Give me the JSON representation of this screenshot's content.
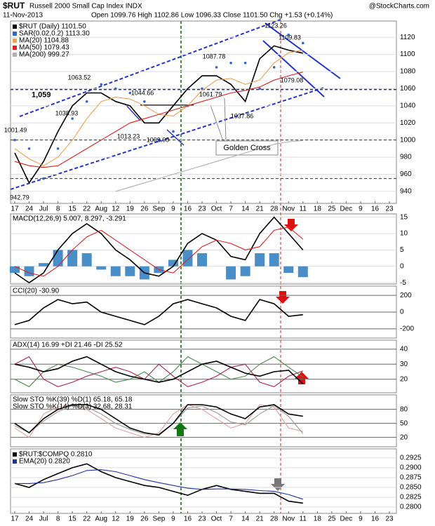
{
  "header": {
    "symbol": "$RUT",
    "name": "Russell 2000 Small Cap Index INDX",
    "date": "11-Nov-2013",
    "quote": "Open 1099.76 High 1102.86 Low 1096.33 Close 1101.50 Chg +1.53 (+0.14%)",
    "watermark": "@StockCharts.com"
  },
  "chart_data": [
    {
      "type": "line",
      "categories": [
        "17",
        "24",
        "Jul",
        "8",
        "15",
        "22",
        "Aug",
        "12",
        "19",
        "26",
        "Sep",
        "9",
        "16",
        "23",
        "Oct",
        "7",
        "14",
        "21",
        "28",
        "Nov",
        "11",
        "18",
        "25",
        "Dec",
        "9",
        "16",
        "23"
      ],
      "ylim": [
        926,
        1139
      ],
      "yticks": [
        940,
        960,
        980,
        1000,
        1020,
        1040,
        1060,
        1080,
        1100,
        1120
      ],
      "hlines": [
        {
          "value": 1059,
          "label": "1,059"
        },
        1000,
        955
      ],
      "annotations": [
        "1001.49",
        "942.79",
        "1063.52",
        "1038.93",
        "1044.66",
        "1013.23",
        "1009.00",
        "1087.78",
        "1061.79",
        "1037.86",
        "1123.26",
        "1109.83",
        "1079.08"
      ],
      "callout": "Golden Cross",
      "series": [
        {
          "name": "$RUT (Daily) 1101.50",
          "color": "#000000",
          "values": [
            985,
            950,
            975,
            1010,
            1040,
            1055,
            1055,
            1045,
            1040,
            1020,
            1020,
            1040,
            1060,
            1075,
            1075,
            1065,
            1045,
            1095,
            1110,
            1105,
            1101.5,
            null,
            null,
            null,
            null,
            null,
            null
          ]
        },
        {
          "name": "SAR(0.02,0.2) 1113.30",
          "color": "#3366cc",
          "kind": "dots",
          "values": [
            1000,
            990,
            955,
            990,
            1025,
            1045,
            1065,
            1060,
            1055,
            1045,
            1000,
            1010,
            1040,
            1060,
            1085,
            1090,
            1090,
            1060,
            1085,
            1123,
            1113.3,
            null,
            null,
            null,
            null,
            null,
            null
          ]
        },
        {
          "name": "MA(20) 1104.88",
          "color": "#f0a050",
          "values": [
            990,
            978,
            970,
            980,
            1000,
            1025,
            1045,
            1050,
            1048,
            1040,
            1030,
            1028,
            1040,
            1058,
            1070,
            1072,
            1065,
            1070,
            1090,
            1102,
            1104.88,
            null,
            null,
            null,
            null,
            null,
            null
          ]
        },
        {
          "name": "MA(50) 1079.43",
          "color": "#e02020",
          "values": [
            975,
            970,
            968,
            970,
            980,
            990,
            1000,
            1010,
            1020,
            1025,
            1030,
            1035,
            1040,
            1045,
            1050,
            1055,
            1058,
            1062,
            1070,
            1075,
            1079.43,
            null,
            null,
            null,
            null,
            null,
            null
          ]
        },
        {
          "name": "MA(200) 999.27",
          "color": "#b0b0b0",
          "values": [
            null,
            null,
            null,
            null,
            null,
            null,
            null,
            940,
            945,
            950,
            955,
            960,
            965,
            970,
            975,
            980,
            985,
            990,
            995,
            998,
            999.27,
            null,
            null,
            null,
            null,
            null,
            null
          ]
        }
      ]
    },
    {
      "type": "line",
      "title": "MACD(12,26,9) 5.007, 8.297, -3.291",
      "ylim": [
        -5.4,
        16
      ],
      "yticks": [
        -5,
        0,
        5,
        10,
        15
      ],
      "series": [
        {
          "name": "Histogram",
          "color": "#4a8ec8",
          "kind": "bar",
          "values": [
            -2,
            -3,
            1,
            5,
            5,
            4,
            -1,
            -3,
            -3,
            -4,
            -2,
            2,
            5,
            4,
            0,
            -4,
            -3,
            4,
            4,
            -2,
            -3.291,
            null,
            null,
            null,
            null,
            null,
            null
          ]
        },
        {
          "name": "MACD",
          "color": "#000000",
          "values": [
            -2,
            -5,
            -2,
            5,
            10,
            13,
            10,
            5,
            2,
            -2,
            -3,
            0,
            7,
            10,
            8,
            3,
            2,
            10,
            15,
            10,
            5.007,
            null,
            null,
            null,
            null,
            null,
            null
          ]
        },
        {
          "name": "Signal",
          "color": "#e02020",
          "values": [
            0,
            -2,
            -3,
            0,
            5,
            9,
            11,
            8,
            5,
            2,
            -1,
            -2,
            2,
            6,
            8,
            7,
            5,
            6,
            11,
            12,
            8.297,
            null,
            null,
            null,
            null,
            null,
            null
          ]
        }
      ]
    },
    {
      "type": "line",
      "title": "CCI(20) -30.90",
      "ylim": [
        -310,
        310
      ],
      "yticks": [
        -200,
        0,
        200
      ],
      "series": [
        {
          "name": "CCI",
          "color": "#000000",
          "values": [
            -150,
            -100,
            50,
            150,
            100,
            120,
            0,
            -50,
            -100,
            -150,
            -50,
            100,
            150,
            100,
            50,
            -50,
            -100,
            150,
            100,
            -50,
            -30.9,
            null,
            null,
            null,
            null,
            null,
            null
          ]
        }
      ]
    },
    {
      "type": "line",
      "title": "ADX(14) 16.99 +DI 21.46 -DI 25.52",
      "ylim": [
        11,
        46
      ],
      "yticks": [
        20,
        30,
        40
      ],
      "series": [
        {
          "name": "+DI",
          "color": "#4a8a4a",
          "values": [
            20,
            15,
            25,
            30,
            28,
            25,
            22,
            18,
            20,
            25,
            18,
            25,
            35,
            30,
            25,
            20,
            22,
            30,
            35,
            28,
            21.46,
            null,
            null,
            null,
            null,
            null,
            null
          ]
        },
        {
          "name": "-DI",
          "color": "#b02050",
          "values": [
            30,
            35,
            20,
            15,
            18,
            22,
            25,
            28,
            25,
            20,
            30,
            22,
            15,
            18,
            22,
            28,
            30,
            18,
            15,
            22,
            25.52,
            null,
            null,
            null,
            null,
            null,
            null
          ]
        },
        {
          "name": "ADX",
          "color": "#000000",
          "values": [
            30,
            28,
            25,
            27,
            32,
            35,
            30,
            25,
            22,
            20,
            18,
            20,
            25,
            30,
            32,
            28,
            24,
            22,
            25,
            26,
            16.99,
            null,
            null,
            null,
            null,
            null,
            null
          ]
        }
      ]
    },
    {
      "type": "line",
      "titles": [
        "Slow STO %K(39) %D(1) 65.18, 65.18",
        "Slow STO %K(14) %D(3) 32.68, 28.31"
      ],
      "ylim": [
        0,
        111
      ],
      "yticks": [
        20,
        50,
        80
      ],
      "series": [
        {
          "name": "%K(14)",
          "color": "#e0a0a0",
          "values": [
            40,
            20,
            70,
            85,
            90,
            80,
            60,
            40,
            30,
            20,
            30,
            70,
            90,
            80,
            60,
            40,
            50,
            90,
            85,
            40,
            32.68,
            null,
            null,
            null,
            null,
            null,
            null
          ]
        },
        {
          "name": "%D(3)",
          "color": "#999999",
          "values": [
            45,
            30,
            55,
            75,
            88,
            85,
            70,
            50,
            37,
            27,
            27,
            50,
            83,
            87,
            73,
            53,
            47,
            70,
            88,
            65,
            28.31,
            null,
            null,
            null,
            null,
            null,
            null
          ]
        },
        {
          "name": "%K(39)",
          "color": "#000000",
          "values": [
            50,
            30,
            60,
            80,
            90,
            90,
            80,
            60,
            40,
            30,
            25,
            50,
            90,
            90,
            85,
            70,
            60,
            85,
            90,
            70,
            65.18,
            null,
            null,
            null,
            null,
            null,
            null
          ]
        }
      ]
    },
    {
      "type": "line",
      "categories": [
        "17",
        "24",
        "Jul",
        "8",
        "15",
        "22",
        "Aug",
        "12",
        "19",
        "26",
        "Sep",
        "9",
        "16",
        "23",
        "Oct",
        "7",
        "14",
        "21",
        "28",
        "Nov",
        "11",
        "18",
        "25",
        "Dec",
        "9",
        "16",
        "23"
      ],
      "ylim": [
        0.2784,
        0.2948
      ],
      "yticks": [
        {
          "value": 0.28,
          "label": "0.2800"
        },
        0.2825,
        {
          "value": 0.285,
          "label": "0.2850"
        },
        0.2875,
        {
          "value": 0.29,
          "label": "0.2900"
        },
        0.2925
      ],
      "series": [
        {
          "name": "$RUT:$COMPQ 0.2810",
          "color": "#000000",
          "values": [
            0.286,
            0.285,
            0.287,
            0.2885,
            0.29,
            0.291,
            0.289,
            0.2875,
            0.2865,
            0.2855,
            0.285,
            0.284,
            0.283,
            0.2845,
            0.2855,
            0.2845,
            0.284,
            0.2835,
            0.2835,
            0.2815,
            0.281,
            null,
            null,
            null,
            null,
            null,
            null
          ]
        },
        {
          "name": "EMA(20) 0.2820",
          "color": "#2030a0",
          "values": [
            0.286,
            0.286,
            0.2862,
            0.287,
            0.288,
            0.2893,
            0.2895,
            0.289,
            0.288,
            0.287,
            0.2862,
            0.2855,
            0.2848,
            0.2845,
            0.2846,
            0.2846,
            0.2845,
            0.2842,
            0.284,
            0.2832,
            0.282,
            null,
            null,
            null,
            null,
            null,
            null
          ]
        }
      ]
    }
  ]
}
